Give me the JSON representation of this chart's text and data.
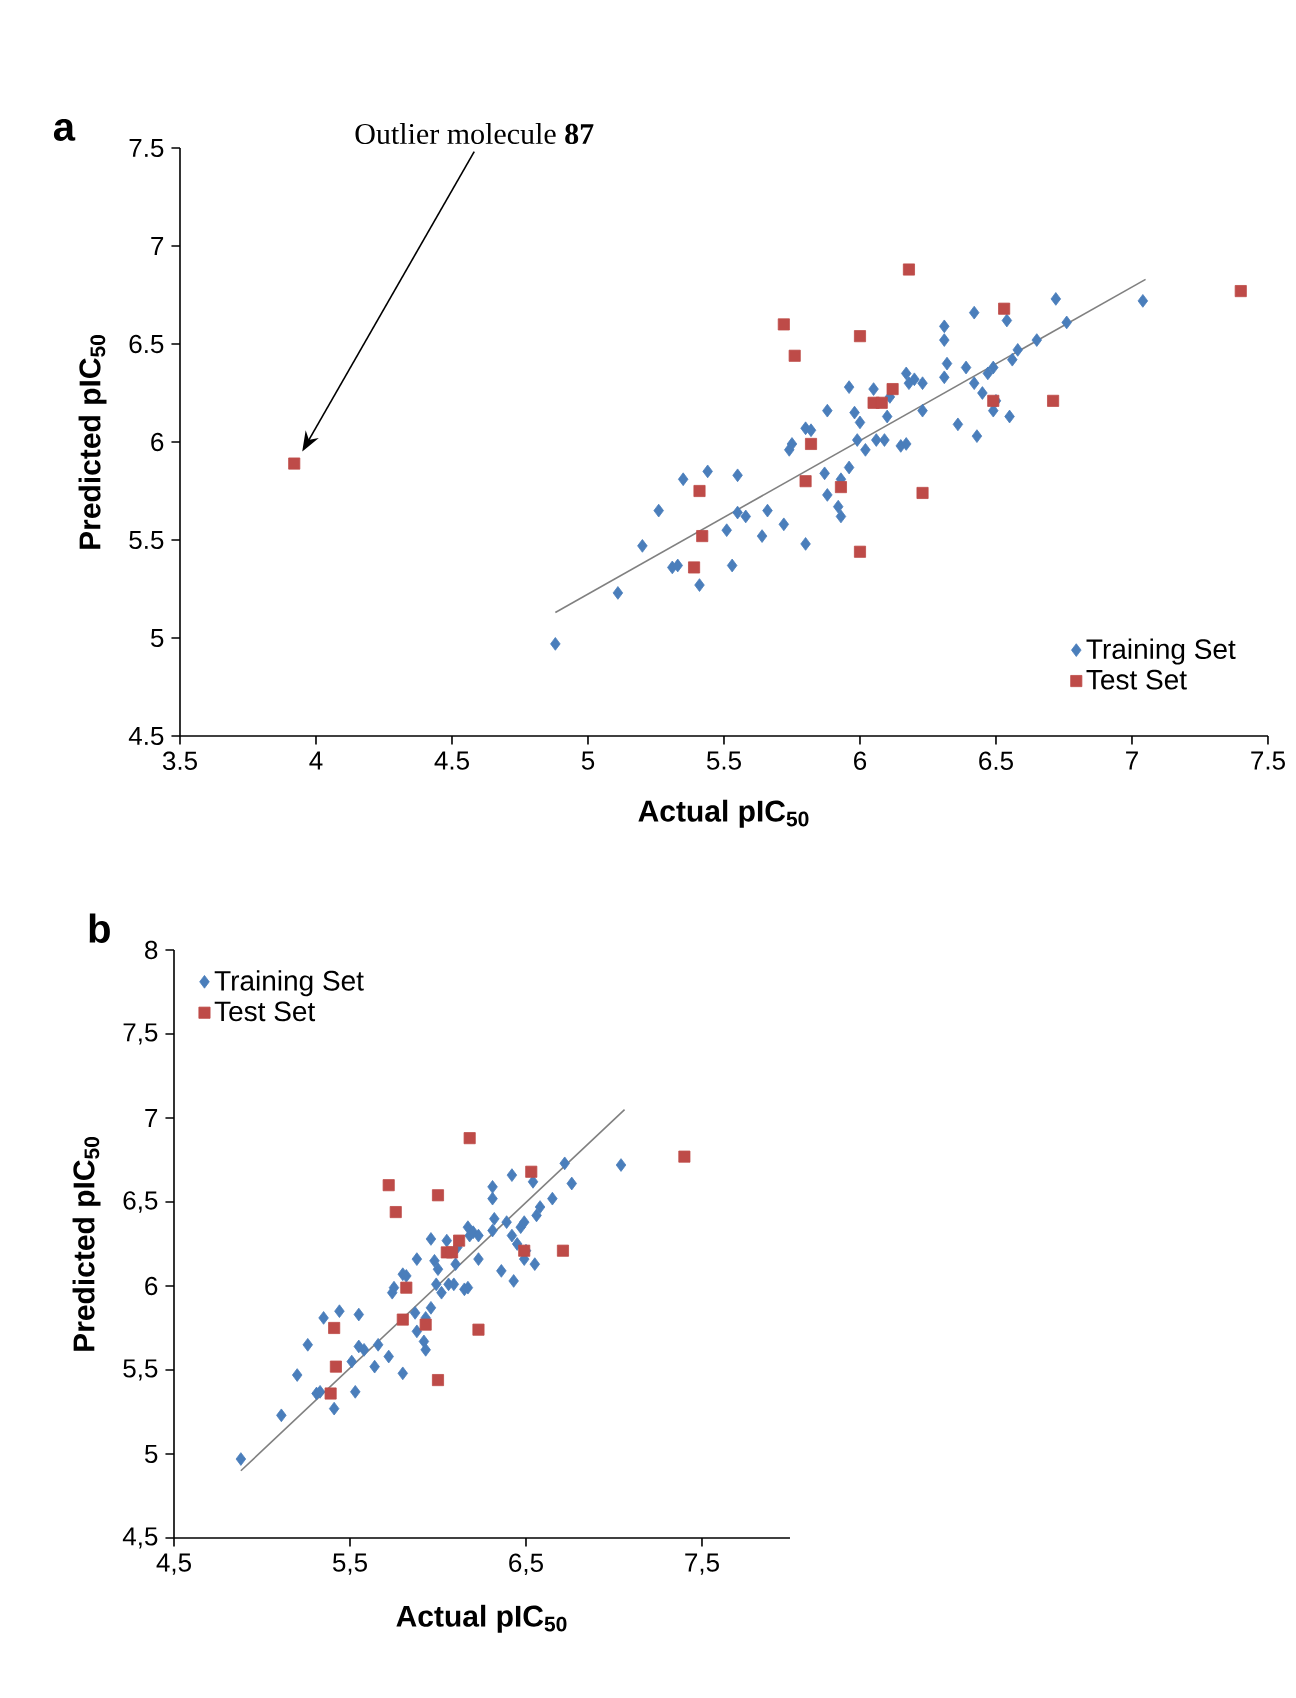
{
  "chart_data": [
    {
      "type": "scatter",
      "title": "a",
      "xlabel": "Actual pIC$_{50}$",
      "ylabel": "Predicted pIC$_{50}$",
      "xlim": [
        3.5,
        7.5
      ],
      "ylim": [
        4.5,
        7.5
      ],
      "xticks": [
        3.5,
        4,
        4.5,
        5,
        5.5,
        6,
        6.5,
        7,
        7.5
      ],
      "yticks": [
        4.5,
        5,
        5.5,
        6,
        6.5,
        7,
        7.5
      ],
      "legend": "bottom right",
      "grid": false,
      "annotations": [
        "Outlier molecule **87**"
      ],
      "series": [
        {
          "name": "Training Set",
          "color": "#4a7ebb",
          "marker": "diamond",
          "x": [
            4.88,
            5.11,
            5.2,
            5.26,
            5.31,
            5.33,
            5.35,
            5.41,
            5.44,
            5.53,
            5.55,
            5.51,
            5.55,
            5.58,
            5.64,
            5.66,
            5.72,
            5.74,
            5.75,
            5.8,
            5.8,
            5.82,
            5.87,
            5.88,
            5.88,
            5.92,
            5.93,
            5.93,
            5.96,
            5.96,
            5.98,
            5.99,
            6.0,
            6.02,
            6.05,
            6.06,
            6.09,
            6.1,
            6.11,
            6.15,
            6.17,
            6.17,
            6.18,
            6.2,
            6.23,
            6.23,
            6.31,
            6.31,
            6.31,
            6.32,
            6.36,
            6.39,
            6.42,
            6.42,
            6.43,
            6.45,
            6.47,
            6.49,
            6.49,
            6.5,
            6.54,
            6.55,
            6.56,
            6.58,
            6.65,
            6.72,
            6.76,
            7.04
          ],
          "values": [
            4.97,
            5.23,
            5.47,
            5.65,
            5.36,
            5.37,
            5.81,
            5.27,
            5.85,
            5.37,
            5.83,
            5.55,
            5.64,
            5.62,
            5.52,
            5.65,
            5.58,
            5.96,
            5.99,
            5.48,
            6.07,
            6.06,
            5.84,
            6.16,
            5.73,
            5.67,
            5.62,
            5.81,
            6.28,
            5.87,
            6.15,
            6.01,
            6.1,
            5.96,
            6.27,
            6.01,
            6.01,
            6.13,
            6.23,
            5.98,
            5.99,
            6.35,
            6.3,
            6.32,
            6.3,
            6.16,
            6.59,
            6.52,
            6.33,
            6.4,
            6.09,
            6.38,
            6.3,
            6.66,
            6.03,
            6.25,
            6.35,
            6.38,
            6.16,
            6.21,
            6.62,
            6.13,
            6.42,
            6.47,
            6.52,
            6.73,
            6.61,
            6.72
          ]
        },
        {
          "name": "Test Set",
          "color": "#be4b48",
          "marker": "square",
          "x": [
            3.92,
            5.39,
            5.41,
            5.42,
            5.72,
            5.76,
            5.8,
            5.82,
            5.93,
            6.0,
            6.0,
            6.05,
            6.08,
            6.12,
            6.18,
            6.23,
            6.49,
            6.53,
            6.71,
            7.4
          ],
          "values": [
            5.89,
            5.36,
            5.75,
            5.52,
            6.6,
            6.44,
            5.8,
            5.99,
            5.77,
            6.54,
            5.44,
            6.2,
            6.2,
            6.27,
            6.88,
            5.74,
            6.21,
            6.68,
            6.21,
            6.77
          ]
        },
        {
          "type": "line",
          "color": "#808080",
          "marker": "none",
          "x": [
            4.88,
            7.05
          ],
          "values": [
            5.13,
            6.83
          ]
        }
      ]
    },
    {
      "type": "scatter",
      "title": "b",
      "xlabel": "Actual pIC$_{50}$",
      "ylabel": "Predicted pIC$_{50}$",
      "xlim": [
        4.5,
        8
      ],
      "ylim": [
        4.5,
        8
      ],
      "xticks": [
        {
          "value": 4.5,
          "label": "4,5"
        },
        {
          "value": 5.5,
          "label": "5,5"
        },
        {
          "value": 6.5,
          "label": "6,5"
        },
        {
          "value": 7.5,
          "label": "7,5"
        }
      ],
      "yticks": [
        {
          "value": 4.5,
          "label": "4,5"
        },
        5,
        {
          "value": 5.5,
          "label": "5,5"
        },
        6,
        {
          "value": 6.5,
          "label": "6,5"
        },
        7,
        {
          "value": 7.5,
          "label": "7,5"
        },
        8
      ],
      "legend": "top left",
      "grid": false,
      "series": [
        {
          "name": "Training Set",
          "color": "#4a7ebb",
          "marker": "diamond",
          "x": [
            4.88,
            5.11,
            5.2,
            5.26,
            5.31,
            5.33,
            5.35,
            5.41,
            5.44,
            5.53,
            5.55,
            5.51,
            5.55,
            5.58,
            5.64,
            5.66,
            5.72,
            5.74,
            5.75,
            5.8,
            5.8,
            5.82,
            5.87,
            5.88,
            5.88,
            5.92,
            5.93,
            5.93,
            5.96,
            5.96,
            5.98,
            5.99,
            6.0,
            6.02,
            6.05,
            6.06,
            6.09,
            6.1,
            6.11,
            6.15,
            6.17,
            6.17,
            6.18,
            6.2,
            6.23,
            6.23,
            6.31,
            6.31,
            6.31,
            6.32,
            6.36,
            6.39,
            6.42,
            6.42,
            6.43,
            6.45,
            6.47,
            6.49,
            6.49,
            6.5,
            6.54,
            6.55,
            6.56,
            6.58,
            6.65,
            6.72,
            6.76,
            7.04
          ],
          "values": [
            4.97,
            5.23,
            5.47,
            5.65,
            5.36,
            5.37,
            5.81,
            5.27,
            5.85,
            5.37,
            5.83,
            5.55,
            5.64,
            5.62,
            5.52,
            5.65,
            5.58,
            5.96,
            5.99,
            5.48,
            6.07,
            6.06,
            5.84,
            6.16,
            5.73,
            5.67,
            5.62,
            5.81,
            6.28,
            5.87,
            6.15,
            6.01,
            6.1,
            5.96,
            6.27,
            6.01,
            6.01,
            6.13,
            6.23,
            5.98,
            5.99,
            6.35,
            6.3,
            6.32,
            6.3,
            6.16,
            6.59,
            6.52,
            6.33,
            6.4,
            6.09,
            6.38,
            6.3,
            6.66,
            6.03,
            6.25,
            6.35,
            6.38,
            6.16,
            6.21,
            6.62,
            6.13,
            6.42,
            6.47,
            6.52,
            6.73,
            6.61,
            6.72
          ]
        },
        {
          "name": "Test Set",
          "color": "#be4b48",
          "marker": "square",
          "x": [
            5.39,
            5.41,
            5.42,
            5.72,
            5.76,
            5.8,
            5.82,
            5.93,
            6.0,
            6.0,
            6.05,
            6.08,
            6.12,
            6.18,
            6.23,
            6.49,
            6.53,
            6.71,
            7.4
          ],
          "values": [
            5.36,
            5.75,
            5.52,
            6.6,
            6.44,
            5.8,
            5.99,
            5.77,
            6.54,
            5.44,
            6.2,
            6.2,
            6.27,
            6.88,
            5.74,
            6.21,
            6.68,
            6.21,
            6.77
          ]
        },
        {
          "type": "line",
          "color": "#808080",
          "marker": "none",
          "x": [
            4.88,
            7.06
          ],
          "values": [
            4.9,
            7.05
          ]
        }
      ]
    }
  ]
}
